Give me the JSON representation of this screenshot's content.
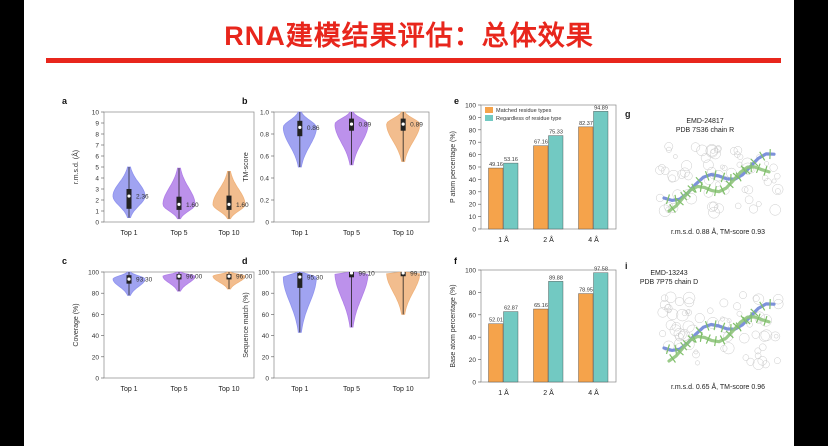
{
  "slide": {
    "title": "RNA建模结果评估：总体效果"
  },
  "chart_data": [
    {
      "id": "a",
      "panel_label": "a",
      "type": "violin",
      "categories": [
        "Top 1",
        "Top 5",
        "Top 10"
      ],
      "ylabel": "r.m.s.d. (Å)",
      "ylim": [
        0,
        10
      ],
      "yticks": [
        0,
        1,
        2,
        3,
        4,
        5,
        6,
        7,
        8,
        9,
        10
      ],
      "colors": [
        "#8f93ef",
        "#b07ee8",
        "#f0b27a"
      ],
      "min": [
        0.4,
        0.3,
        0.3
      ],
      "q1": [
        1.2,
        1.1,
        1.1
      ],
      "median": [
        2.36,
        1.6,
        1.6
      ],
      "q3": [
        3.0,
        2.3,
        2.4
      ],
      "max": [
        5.0,
        4.9,
        4.6
      ],
      "median_labels": [
        "2.36",
        "1.60",
        "1.60"
      ],
      "label_side": "right"
    },
    {
      "id": "b",
      "panel_label": "b",
      "type": "violin",
      "categories": [
        "Top 1",
        "Top 5",
        "Top 10"
      ],
      "ylabel": "TM-score",
      "ylim": [
        0,
        1
      ],
      "yticks": [
        0,
        0.2,
        0.4,
        0.6,
        0.8,
        1.0
      ],
      "tick_labels": [
        "0",
        "0.2",
        "0.4",
        "0.6",
        "0.8",
        "1.0"
      ],
      "colors": [
        "#8f93ef",
        "#b07ee8",
        "#f0b27a"
      ],
      "min": [
        0.5,
        0.52,
        0.55
      ],
      "q1": [
        0.78,
        0.83,
        0.83
      ],
      "median": [
        0.86,
        0.89,
        0.89
      ],
      "q3": [
        0.92,
        0.94,
        0.94
      ],
      "max": [
        1.0,
        1.0,
        1.0
      ],
      "median_labels": [
        "0.86",
        "0.89",
        "0.89"
      ],
      "label_side": "right"
    },
    {
      "id": "c",
      "panel_label": "c",
      "type": "violin",
      "categories": [
        "Top 1",
        "Top 5",
        "Top 10"
      ],
      "ylabel": "Coverage (%)",
      "ylim": [
        0,
        100
      ],
      "yticks": [
        0,
        20,
        40,
        60,
        80,
        100
      ],
      "colors": [
        "#8f93ef",
        "#b07ee8",
        "#f0b27a"
      ],
      "min": [
        78,
        82,
        84
      ],
      "q1": [
        89,
        93,
        93
      ],
      "median": [
        93.3,
        96,
        96
      ],
      "q3": [
        97,
        98,
        98
      ],
      "max": [
        100,
        100,
        100
      ],
      "median_labels": [
        "93.30",
        "96.00",
        "96.00"
      ],
      "label_side": "right"
    },
    {
      "id": "d",
      "panel_label": "d",
      "type": "violin",
      "categories": [
        "Top 1",
        "Top 5",
        "Top 10"
      ],
      "ylabel": "Sequence match (%)",
      "ylim": [
        0,
        100
      ],
      "yticks": [
        0,
        20,
        40,
        60,
        80,
        100
      ],
      "colors": [
        "#8f93ef",
        "#b07ee8",
        "#f0b27a"
      ],
      "min": [
        43,
        48,
        60
      ],
      "q1": [
        85,
        95,
        96
      ],
      "median": [
        95.3,
        99.1,
        99.1
      ],
      "q3": [
        99,
        100,
        100
      ],
      "max": [
        100,
        100,
        100
      ],
      "median_labels": [
        "95.30",
        "99.10",
        "99.10"
      ],
      "label_side": "right"
    },
    {
      "id": "e",
      "panel_label": "e",
      "type": "bar",
      "categories": [
        "1 Å",
        "2 Å",
        "4 Å"
      ],
      "ylabel": "P atom percentage (%)",
      "ylim": [
        0,
        100
      ],
      "yticks": [
        0,
        10,
        20,
        30,
        40,
        50,
        60,
        70,
        80,
        90,
        100
      ],
      "series": [
        {
          "name": "Matched residue types",
          "color": "#f5a34b",
          "values": [
            49.16,
            67.16,
            82.37
          ],
          "labels": [
            "49.16",
            "67.16",
            "82.37"
          ]
        },
        {
          "name": "Regardless of residue type",
          "color": "#72c9c2",
          "values": [
            53.16,
            75.33,
            94.89
          ],
          "labels": [
            "53.16",
            "75.33",
            "94.89"
          ]
        }
      ],
      "legend": "top-left"
    },
    {
      "id": "f",
      "panel_label": "f",
      "type": "bar",
      "categories": [
        "1 Å",
        "2 Å",
        "4 Å"
      ],
      "ylabel": "Base atom percentage (%)",
      "ylim": [
        0,
        100
      ],
      "yticks": [
        0,
        20,
        40,
        60,
        80,
        100
      ],
      "series": [
        {
          "name": "Matched residue types",
          "color": "#f5a34b",
          "values": [
            52.01,
            65.16,
            78.95
          ],
          "labels": [
            "52.01",
            "65.16",
            "78.95"
          ]
        },
        {
          "name": "Regardless of residue type",
          "color": "#72c9c2",
          "values": [
            62.87,
            89.88,
            97.58
          ],
          "labels": [
            "62.87",
            "89.88",
            "97.58"
          ]
        }
      ]
    }
  ],
  "structures": [
    {
      "panel_label": "g",
      "line1": "EMD-24817",
      "line2": "PDB 7S36 chain R",
      "caption": "r.m.s.d. 0.88 Å, TM-score 0.93"
    },
    {
      "panel_label": "i",
      "line1": "EMD-13243",
      "line2": "PDB 7P75 chain D",
      "caption": "r.m.s.d. 0.65 Å, TM-score 0.96"
    }
  ]
}
